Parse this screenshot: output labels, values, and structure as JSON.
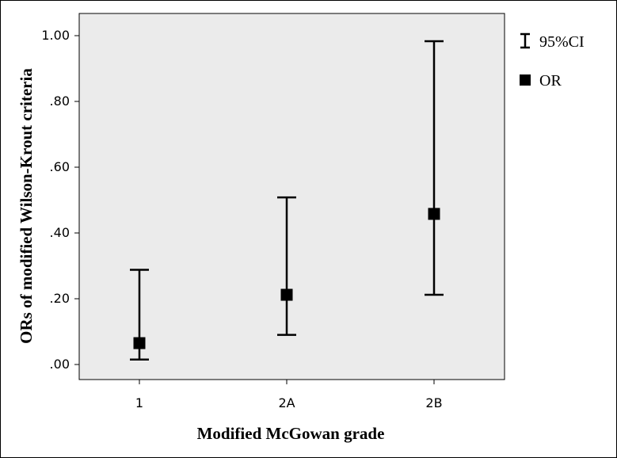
{
  "chart_data": {
    "type": "errorbar",
    "xlabel": "Modified McGowan grade",
    "ylabel": "ORs of modified Wilson-Krout criteria",
    "ylim": [
      0,
      1.05
    ],
    "yticks": [
      ".00",
      ".20",
      ".40",
      ".60",
      ".80",
      "1.00"
    ],
    "ytick_values": [
      0,
      0.2,
      0.4,
      0.6,
      0.8,
      1.0
    ],
    "categories": [
      "1",
      "2A",
      "2B"
    ],
    "series": [
      {
        "name": "OR",
        "values": [
          0.065,
          0.212,
          0.458
        ]
      },
      {
        "name": "95%CI",
        "lower": [
          0.015,
          0.09,
          0.212
        ],
        "upper": [
          0.288,
          0.508,
          0.983
        ]
      }
    ],
    "legend": {
      "placement": "right",
      "items": [
        "95%CI",
        "OR"
      ]
    },
    "grid": false,
    "plot_background": "#ebebeb",
    "marker_color": "#000000"
  }
}
